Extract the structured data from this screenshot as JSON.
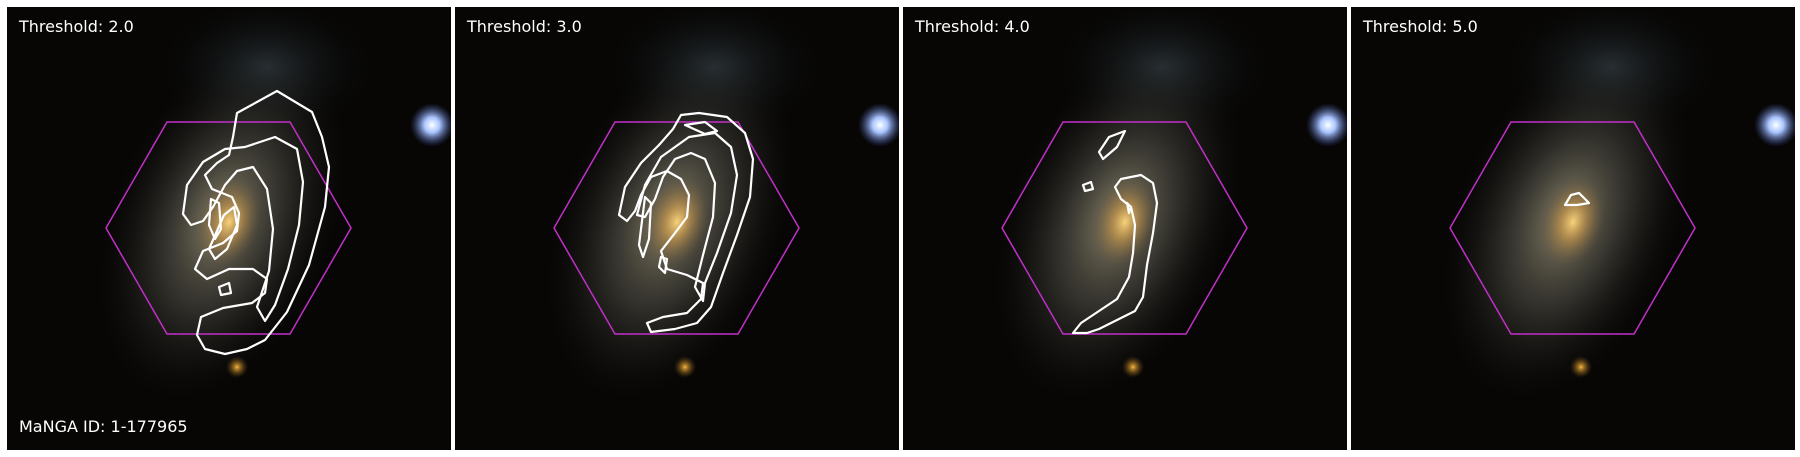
{
  "figure": {
    "panels": [
      {
        "label": "Threshold: 2.0"
      },
      {
        "label": "Threshold: 3.0"
      },
      {
        "label": "Threshold: 4.0"
      },
      {
        "label": "Threshold: 5.0"
      }
    ],
    "galaxy_id_label": "MaNGA ID: 1-177965"
  },
  "colors": {
    "background": "#ffffff",
    "hexagon": "#c030c8",
    "contour": "#ffffff",
    "star": "#8fb4ff",
    "galaxy_core": "#e8c070"
  },
  "icons": {
    "bright_star": "bright-star-icon"
  }
}
